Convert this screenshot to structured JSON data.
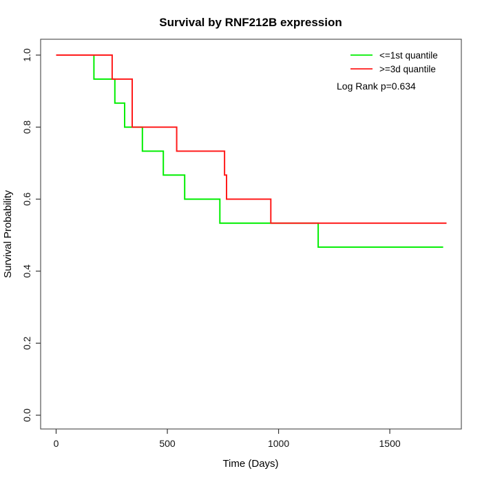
{
  "title": "Survival by RNF212B expression",
  "axes": {
    "x": {
      "label": "Time (Days)",
      "ticks": [
        "0",
        "500",
        "1000",
        "1500"
      ]
    },
    "y": {
      "label": "Survival Probability",
      "ticks": [
        "0.0",
        "0.2",
        "0.4",
        "0.6",
        "0.8",
        "1.0"
      ]
    }
  },
  "legend": {
    "items": [
      {
        "label": "<=1st quantile",
        "color": "#00ee00"
      },
      {
        "label": ">=3d quantile",
        "color": "#ff1a1a"
      }
    ]
  },
  "annotation": "Log Rank p=0.634",
  "chart_data": {
    "type": "line",
    "subtype": "kaplan-meier-step",
    "title": "Survival by RNF212B expression",
    "xlabel": "Time (Days)",
    "ylabel": "Survival Probability",
    "xlim": [
      0,
      1760
    ],
    "ylim": [
      0,
      1
    ],
    "x_ticks": [
      0,
      500,
      1000,
      1500
    ],
    "y_ticks": [
      0.0,
      0.2,
      0.4,
      0.6,
      0.8,
      1.0
    ],
    "grid": false,
    "legend_position": "top-right",
    "annotation": "Log Rank p=0.634",
    "series": [
      {
        "name": "<=1st quantile",
        "color": "#00ee00",
        "steps": [
          [
            0,
            1.0
          ],
          [
            170,
            1.0
          ],
          [
            170,
            0.9333
          ],
          [
            264,
            0.9333
          ],
          [
            264,
            0.8667
          ],
          [
            308,
            0.8667
          ],
          [
            308,
            0.8
          ],
          [
            388,
            0.8
          ],
          [
            388,
            0.7333
          ],
          [
            482,
            0.7333
          ],
          [
            482,
            0.6667
          ],
          [
            578,
            0.6667
          ],
          [
            578,
            0.6
          ],
          [
            736,
            0.6
          ],
          [
            736,
            0.5333
          ],
          [
            1178,
            0.5333
          ],
          [
            1178,
            0.4667
          ],
          [
            1740,
            0.4667
          ]
        ]
      },
      {
        "name": ">=3d quantile",
        "color": "#ff1a1a",
        "steps": [
          [
            0,
            1.0
          ],
          [
            252,
            1.0
          ],
          [
            252,
            0.9333
          ],
          [
            342,
            0.9333
          ],
          [
            342,
            0.8
          ],
          [
            542,
            0.8
          ],
          [
            542,
            0.7333
          ],
          [
            757,
            0.7333
          ],
          [
            757,
            0.6667
          ],
          [
            766,
            0.6667
          ],
          [
            766,
            0.6
          ],
          [
            965,
            0.6
          ],
          [
            965,
            0.5333
          ],
          [
            1755,
            0.5333
          ]
        ]
      }
    ]
  }
}
